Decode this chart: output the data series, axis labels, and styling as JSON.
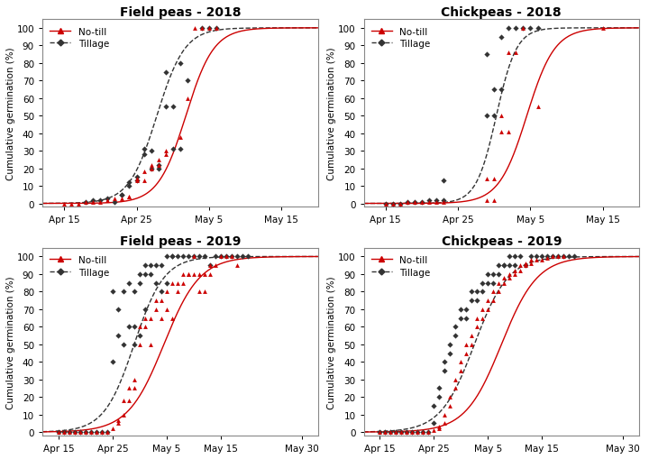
{
  "titles": [
    "Field peas - 2018",
    "Chickpeas - 2018",
    "Field peas - 2019",
    "Chickpeas - 2019"
  ],
  "ylabel": "Cumulative germination (%)",
  "ylim": [
    -2,
    105
  ],
  "yticks": [
    0,
    10,
    20,
    30,
    40,
    50,
    60,
    70,
    80,
    90,
    100
  ],
  "legend_notill": "No-till",
  "legend_tillage": "Tillage",
  "notill_color": "#CC0000",
  "tillage_color": "#333333",
  "background_color": "#ffffff",
  "panel_bg": "#ffffff",
  "fp2018": {
    "xtick_days": [
      14,
      24,
      34,
      44
    ],
    "xtick_labels": [
      "Apr 15",
      "Apr 25",
      "May 5",
      "May 15"
    ],
    "xlim": [
      11,
      49
    ],
    "tillage_pts": [
      [
        17,
        1
      ],
      [
        18,
        2
      ],
      [
        19,
        2
      ],
      [
        20,
        3
      ],
      [
        21,
        1
      ],
      [
        22,
        5
      ],
      [
        22,
        5
      ],
      [
        23,
        10
      ],
      [
        23,
        12
      ],
      [
        24,
        15
      ],
      [
        24,
        13
      ],
      [
        25,
        31
      ],
      [
        25,
        28
      ],
      [
        26,
        30
      ],
      [
        26,
        20
      ],
      [
        27,
        20
      ],
      [
        27,
        22
      ],
      [
        28,
        75
      ],
      [
        28,
        55
      ],
      [
        29,
        55
      ],
      [
        29,
        31
      ],
      [
        30,
        80
      ],
      [
        30,
        31
      ],
      [
        31,
        70
      ],
      [
        33,
        100
      ],
      [
        34,
        100
      ],
      [
        35,
        100
      ]
    ],
    "notill_pts": [
      [
        14,
        0
      ],
      [
        15,
        0
      ],
      [
        16,
        0
      ],
      [
        17,
        1
      ],
      [
        18,
        1
      ],
      [
        19,
        1
      ],
      [
        20,
        2
      ],
      [
        21,
        3
      ],
      [
        22,
        3
      ],
      [
        23,
        4
      ],
      [
        23,
        4
      ],
      [
        24,
        14
      ],
      [
        24,
        13
      ],
      [
        25,
        13
      ],
      [
        25,
        18
      ],
      [
        26,
        20
      ],
      [
        26,
        22
      ],
      [
        27,
        22
      ],
      [
        27,
        25
      ],
      [
        28,
        30
      ],
      [
        28,
        28
      ],
      [
        30,
        38
      ],
      [
        31,
        60
      ],
      [
        32,
        100
      ],
      [
        33,
        100
      ],
      [
        34,
        100
      ],
      [
        35,
        100
      ]
    ],
    "tillage_curve": {
      "x0": 26.8,
      "k": 0.52
    },
    "notill_curve": {
      "x0": 30.8,
      "k": 0.52
    }
  },
  "cp2018": {
    "xtick_days": [
      14,
      24,
      34,
      44
    ],
    "xtick_labels": [
      "Apr 15",
      "Apr 25",
      "May 5",
      "May 15"
    ],
    "xlim": [
      11,
      49
    ],
    "tillage_pts": [
      [
        14,
        0
      ],
      [
        15,
        0
      ],
      [
        16,
        0
      ],
      [
        17,
        1
      ],
      [
        18,
        1
      ],
      [
        19,
        1
      ],
      [
        20,
        2
      ],
      [
        21,
        2
      ],
      [
        22,
        13
      ],
      [
        22,
        2
      ],
      [
        28,
        85
      ],
      [
        28,
        50
      ],
      [
        29,
        50
      ],
      [
        29,
        65
      ],
      [
        30,
        65
      ],
      [
        30,
        95
      ],
      [
        31,
        100
      ],
      [
        32,
        100
      ],
      [
        33,
        100
      ],
      [
        34,
        100
      ],
      [
        35,
        100
      ]
    ],
    "notill_pts": [
      [
        14,
        0
      ],
      [
        15,
        0
      ],
      [
        16,
        0
      ],
      [
        17,
        1
      ],
      [
        18,
        1
      ],
      [
        19,
        1
      ],
      [
        20,
        1
      ],
      [
        21,
        1
      ],
      [
        22,
        1
      ],
      [
        28,
        14
      ],
      [
        28,
        2
      ],
      [
        29,
        2
      ],
      [
        29,
        14
      ],
      [
        30,
        50
      ],
      [
        30,
        41
      ],
      [
        31,
        41
      ],
      [
        31,
        86
      ],
      [
        32,
        86
      ],
      [
        33,
        100
      ],
      [
        35,
        55
      ],
      [
        44,
        100
      ]
    ],
    "tillage_curve": {
      "x0": 29.3,
      "k": 0.72
    },
    "notill_curve": {
      "x0": 33.5,
      "k": 0.52
    }
  },
  "fp2019": {
    "xtick_days": [
      14,
      24,
      34,
      44,
      59
    ],
    "xtick_labels": [
      "Apr 15",
      "Apr 25",
      "May 5",
      "May 15",
      "May 30"
    ],
    "xlim": [
      11,
      62
    ],
    "tillage_pts": [
      [
        14,
        0
      ],
      [
        15,
        0
      ],
      [
        16,
        0
      ],
      [
        17,
        0
      ],
      [
        18,
        0
      ],
      [
        19,
        0
      ],
      [
        20,
        0
      ],
      [
        21,
        0
      ],
      [
        22,
        0
      ],
      [
        23,
        0
      ],
      [
        24,
        40
      ],
      [
        24,
        80
      ],
      [
        25,
        55
      ],
      [
        25,
        70
      ],
      [
        26,
        50
      ],
      [
        26,
        80
      ],
      [
        27,
        60
      ],
      [
        27,
        85
      ],
      [
        28,
        60
      ],
      [
        28,
        50
      ],
      [
        28,
        80
      ],
      [
        29,
        90
      ],
      [
        29,
        55
      ],
      [
        29,
        85
      ],
      [
        30,
        90
      ],
      [
        30,
        70
      ],
      [
        30,
        95
      ],
      [
        31,
        90
      ],
      [
        31,
        95
      ],
      [
        32,
        85
      ],
      [
        32,
        95
      ],
      [
        33,
        95
      ],
      [
        33,
        80
      ],
      [
        34,
        100
      ],
      [
        34,
        85
      ],
      [
        35,
        100
      ],
      [
        35,
        100
      ],
      [
        36,
        100
      ],
      [
        37,
        100
      ],
      [
        38,
        100
      ],
      [
        39,
        100
      ],
      [
        40,
        100
      ],
      [
        41,
        100
      ],
      [
        42,
        95
      ],
      [
        43,
        100
      ],
      [
        44,
        100
      ],
      [
        45,
        100
      ],
      [
        46,
        100
      ],
      [
        47,
        100
      ],
      [
        48,
        100
      ],
      [
        49,
        100
      ]
    ],
    "notill_pts": [
      [
        14,
        0
      ],
      [
        15,
        0
      ],
      [
        16,
        0
      ],
      [
        17,
        0
      ],
      [
        18,
        0
      ],
      [
        19,
        0
      ],
      [
        20,
        0
      ],
      [
        21,
        0
      ],
      [
        22,
        0
      ],
      [
        23,
        0
      ],
      [
        24,
        2
      ],
      [
        25,
        7
      ],
      [
        25,
        5
      ],
      [
        26,
        18
      ],
      [
        26,
        10
      ],
      [
        27,
        25
      ],
      [
        27,
        18
      ],
      [
        28,
        30
      ],
      [
        28,
        25
      ],
      [
        29,
        60
      ],
      [
        29,
        50
      ],
      [
        30,
        65
      ],
      [
        30,
        60
      ],
      [
        31,
        50
      ],
      [
        31,
        65
      ],
      [
        32,
        70
      ],
      [
        32,
        75
      ],
      [
        33,
        75
      ],
      [
        33,
        65
      ],
      [
        34,
        80
      ],
      [
        34,
        70
      ],
      [
        35,
        65
      ],
      [
        35,
        85
      ],
      [
        36,
        85
      ],
      [
        36,
        80
      ],
      [
        37,
        90
      ],
      [
        37,
        85
      ],
      [
        38,
        90
      ],
      [
        38,
        90
      ],
      [
        39,
        100
      ],
      [
        39,
        90
      ],
      [
        40,
        90
      ],
      [
        40,
        80
      ],
      [
        41,
        80
      ],
      [
        41,
        90
      ],
      [
        42,
        90
      ],
      [
        42,
        95
      ],
      [
        43,
        95
      ],
      [
        44,
        100
      ],
      [
        45,
        100
      ],
      [
        46,
        100
      ],
      [
        47,
        95
      ]
    ],
    "tillage_curve": {
      "x0": 28.0,
      "k": 0.36
    },
    "notill_curve": {
      "x0": 33.5,
      "k": 0.3
    }
  },
  "cp2019": {
    "xtick_days": [
      14,
      24,
      34,
      44,
      59
    ],
    "xtick_labels": [
      "Apr 15",
      "Apr 25",
      "May 5",
      "May 15",
      "May 30"
    ],
    "xlim": [
      11,
      62
    ],
    "tillage_pts": [
      [
        14,
        0
      ],
      [
        15,
        0
      ],
      [
        16,
        0
      ],
      [
        17,
        0
      ],
      [
        18,
        0
      ],
      [
        19,
        0
      ],
      [
        20,
        0
      ],
      [
        21,
        0
      ],
      [
        22,
        0
      ],
      [
        23,
        0
      ],
      [
        24,
        5
      ],
      [
        24,
        15
      ],
      [
        25,
        20
      ],
      [
        25,
        25
      ],
      [
        26,
        40
      ],
      [
        26,
        35
      ],
      [
        27,
        50
      ],
      [
        27,
        45
      ],
      [
        28,
        60
      ],
      [
        28,
        55
      ],
      [
        29,
        70
      ],
      [
        29,
        65
      ],
      [
        30,
        65
      ],
      [
        30,
        70
      ],
      [
        31,
        75
      ],
      [
        31,
        80
      ],
      [
        32,
        80
      ],
      [
        32,
        75
      ],
      [
        33,
        85
      ],
      [
        33,
        80
      ],
      [
        34,
        90
      ],
      [
        34,
        85
      ],
      [
        35,
        85
      ],
      [
        35,
        90
      ],
      [
        36,
        95
      ],
      [
        36,
        90
      ],
      [
        37,
        95
      ],
      [
        37,
        95
      ],
      [
        38,
        100
      ],
      [
        38,
        95
      ],
      [
        39,
        95
      ],
      [
        39,
        100
      ],
      [
        40,
        100
      ],
      [
        41,
        95
      ],
      [
        42,
        100
      ],
      [
        43,
        100
      ],
      [
        44,
        100
      ],
      [
        45,
        100
      ],
      [
        46,
        100
      ],
      [
        47,
        100
      ],
      [
        48,
        100
      ],
      [
        49,
        100
      ],
      [
        50,
        100
      ]
    ],
    "notill_pts": [
      [
        14,
        0
      ],
      [
        15,
        0
      ],
      [
        16,
        0
      ],
      [
        17,
        0
      ],
      [
        18,
        0
      ],
      [
        19,
        0
      ],
      [
        20,
        0
      ],
      [
        21,
        0
      ],
      [
        22,
        0
      ],
      [
        23,
        0
      ],
      [
        24,
        1
      ],
      [
        25,
        3
      ],
      [
        25,
        2
      ],
      [
        26,
        10
      ],
      [
        26,
        5
      ],
      [
        27,
        20
      ],
      [
        27,
        15
      ],
      [
        28,
        30
      ],
      [
        28,
        25
      ],
      [
        29,
        40
      ],
      [
        29,
        35
      ],
      [
        30,
        50
      ],
      [
        30,
        45
      ],
      [
        31,
        55
      ],
      [
        31,
        50
      ],
      [
        32,
        65
      ],
      [
        32,
        60
      ],
      [
        33,
        70
      ],
      [
        33,
        65
      ],
      [
        34,
        75
      ],
      [
        34,
        70
      ],
      [
        35,
        80
      ],
      [
        35,
        75
      ],
      [
        36,
        85
      ],
      [
        36,
        80
      ],
      [
        37,
        88
      ],
      [
        37,
        85
      ],
      [
        38,
        90
      ],
      [
        38,
        88
      ],
      [
        39,
        92
      ],
      [
        39,
        90
      ],
      [
        40,
        95
      ],
      [
        40,
        92
      ],
      [
        41,
        96
      ],
      [
        41,
        95
      ],
      [
        42,
        98
      ],
      [
        42,
        96
      ],
      [
        43,
        98
      ],
      [
        44,
        98
      ],
      [
        45,
        99
      ],
      [
        46,
        100
      ],
      [
        47,
        100
      ],
      [
        48,
        100
      ]
    ],
    "tillage_curve": {
      "x0": 31.5,
      "k": 0.32
    },
    "notill_curve": {
      "x0": 36.5,
      "k": 0.3
    }
  }
}
